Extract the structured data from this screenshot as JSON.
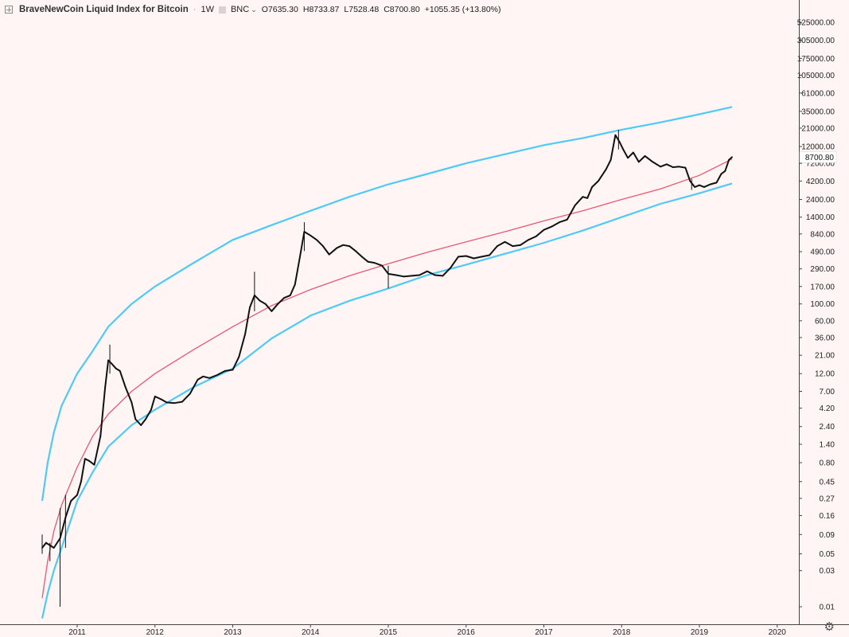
{
  "header": {
    "symbol": "BraveNewCoin Liquid Index for Bitcoin",
    "interval": "1W",
    "exchange": "BNC",
    "open": "O7635.30",
    "high": "H8733.87",
    "low": "L7528.48",
    "close": "C8700.80",
    "change": "+1055.35 (+13.80%)"
  },
  "colors": {
    "background": "#fff5f5",
    "price": "#111111",
    "band_outer": "#4fc9f5",
    "band_mid": "#e8586f",
    "last_price_label_bg": "#ffffff"
  },
  "icons": {
    "expand": "expand-icon",
    "visibility": "visibility-icon",
    "dropdown": "chevron-down-icon",
    "settings": "gear-icon"
  },
  "chart_data": {
    "type": "line",
    "title": "BraveNewCoin Liquid Index for Bitcoin",
    "yscale": "log",
    "ylim": [
      0.005,
      1000000
    ],
    "xlim": [
      2010.45,
      2020.45
    ],
    "y_ticks": [
      "525000.00",
      "305000.00",
      "175000.00",
      "105000.00",
      "61000.00",
      "35000.00",
      "21000.00",
      "12000.00",
      "7200.00",
      "4200.00",
      "2400.00",
      "1400.00",
      "840.00",
      "490.00",
      "290.00",
      "170.00",
      "100.00",
      "60.00",
      "36.00",
      "21.00",
      "12.00",
      "7.00",
      "4.20",
      "2.40",
      "1.40",
      "0.80",
      "0.45",
      "0.27",
      "0.16",
      "0.09",
      "0.05",
      "0.03",
      "0.01"
    ],
    "y_tick_values": [
      525000,
      305000,
      175000,
      105000,
      61000,
      35000,
      21000,
      12000,
      7200,
      4200,
      2400,
      1400,
      840,
      490,
      290,
      170,
      100,
      60,
      36,
      21,
      12,
      7,
      4.2,
      2.4,
      1.4,
      0.8,
      0.45,
      0.27,
      0.16,
      0.09,
      0.05,
      0.03,
      0.01
    ],
    "x_ticks": [
      "2011",
      "2012",
      "2013",
      "2014",
      "2015",
      "2016",
      "2017",
      "2018",
      "2019",
      "2020"
    ],
    "x_tick_values": [
      2011,
      2012,
      2013,
      2014,
      2015,
      2016,
      2017,
      2018,
      2019,
      2020
    ],
    "last_price_label": "8700.80",
    "last_price": 8700.8,
    "price_series": [
      [
        2010.55,
        0.06
      ],
      [
        2010.6,
        0.07
      ],
      [
        2010.7,
        0.06
      ],
      [
        2010.78,
        0.08
      ],
      [
        2010.85,
        0.15
      ],
      [
        2010.92,
        0.25
      ],
      [
        2011.0,
        0.3
      ],
      [
        2011.05,
        0.45
      ],
      [
        2011.1,
        0.9
      ],
      [
        2011.15,
        0.85
      ],
      [
        2011.22,
        0.75
      ],
      [
        2011.3,
        1.8
      ],
      [
        2011.36,
        8.0
      ],
      [
        2011.4,
        18.0
      ],
      [
        2011.45,
        16.0
      ],
      [
        2011.5,
        14.0
      ],
      [
        2011.55,
        13.0
      ],
      [
        2011.62,
        8.0
      ],
      [
        2011.7,
        5.0
      ],
      [
        2011.75,
        3.0
      ],
      [
        2011.82,
        2.5
      ],
      [
        2011.88,
        3.0
      ],
      [
        2011.95,
        4.0
      ],
      [
        2012.0,
        6.0
      ],
      [
        2012.08,
        5.5
      ],
      [
        2012.15,
        5.0
      ],
      [
        2012.25,
        4.9
      ],
      [
        2012.35,
        5.1
      ],
      [
        2012.45,
        6.5
      ],
      [
        2012.55,
        10.0
      ],
      [
        2012.62,
        11.0
      ],
      [
        2012.7,
        10.5
      ],
      [
        2012.8,
        11.5
      ],
      [
        2012.9,
        13.0
      ],
      [
        2013.0,
        13.5
      ],
      [
        2013.08,
        20.0
      ],
      [
        2013.16,
        40.0
      ],
      [
        2013.22,
        90.0
      ],
      [
        2013.28,
        130.0
      ],
      [
        2013.35,
        110.0
      ],
      [
        2013.42,
        100.0
      ],
      [
        2013.5,
        80.0
      ],
      [
        2013.58,
        100.0
      ],
      [
        2013.66,
        120.0
      ],
      [
        2013.74,
        130.0
      ],
      [
        2013.8,
        180.0
      ],
      [
        2013.86,
        400.0
      ],
      [
        2013.92,
        900.0
      ],
      [
        2014.0,
        800.0
      ],
      [
        2014.08,
        700.0
      ],
      [
        2014.16,
        580.0
      ],
      [
        2014.24,
        450.0
      ],
      [
        2014.34,
        550.0
      ],
      [
        2014.42,
        600.0
      ],
      [
        2014.5,
        580.0
      ],
      [
        2014.58,
        500.0
      ],
      [
        2014.66,
        420.0
      ],
      [
        2014.74,
        360.0
      ],
      [
        2014.82,
        350.0
      ],
      [
        2014.92,
        320.0
      ],
      [
        2015.0,
        250.0
      ],
      [
        2015.1,
        240.0
      ],
      [
        2015.2,
        230.0
      ],
      [
        2015.3,
        235.0
      ],
      [
        2015.4,
        240.0
      ],
      [
        2015.5,
        270.0
      ],
      [
        2015.6,
        240.0
      ],
      [
        2015.7,
        235.0
      ],
      [
        2015.8,
        300.0
      ],
      [
        2015.9,
        420.0
      ],
      [
        2016.0,
        430.0
      ],
      [
        2016.1,
        400.0
      ],
      [
        2016.2,
        420.0
      ],
      [
        2016.3,
        440.0
      ],
      [
        2016.4,
        580.0
      ],
      [
        2016.5,
        660.0
      ],
      [
        2016.6,
        580.0
      ],
      [
        2016.7,
        600.0
      ],
      [
        2016.8,
        700.0
      ],
      [
        2016.9,
        780.0
      ],
      [
        2017.0,
        950.0
      ],
      [
        2017.1,
        1050.0
      ],
      [
        2017.2,
        1200.0
      ],
      [
        2017.3,
        1300.0
      ],
      [
        2017.4,
        2000.0
      ],
      [
        2017.5,
        2600.0
      ],
      [
        2017.56,
        2500.0
      ],
      [
        2017.62,
        3500.0
      ],
      [
        2017.7,
        4200.0
      ],
      [
        2017.8,
        6000.0
      ],
      [
        2017.86,
        8000.0
      ],
      [
        2017.92,
        17000.0
      ],
      [
        2017.97,
        14000.0
      ],
      [
        2018.02,
        11000.0
      ],
      [
        2018.08,
        8500.0
      ],
      [
        2018.15,
        10000.0
      ],
      [
        2018.22,
        7500.0
      ],
      [
        2018.3,
        9000.0
      ],
      [
        2018.4,
        7500.0
      ],
      [
        2018.5,
        6500.0
      ],
      [
        2018.58,
        7000.0
      ],
      [
        2018.66,
        6400.0
      ],
      [
        2018.74,
        6500.0
      ],
      [
        2018.82,
        6300.0
      ],
      [
        2018.88,
        4200.0
      ],
      [
        2018.94,
        3500.0
      ],
      [
        2019.0,
        3700.0
      ],
      [
        2019.06,
        3500.0
      ],
      [
        2019.14,
        3800.0
      ],
      [
        2019.22,
        4000.0
      ],
      [
        2019.28,
        5200.0
      ],
      [
        2019.33,
        5700.0
      ],
      [
        2019.38,
        8000.0
      ],
      [
        2019.42,
        8700.8
      ]
    ],
    "spikes": [
      [
        2010.55,
        0.05,
        0.09
      ],
      [
        2010.65,
        0.04,
        0.07
      ],
      [
        2010.78,
        0.01,
        0.2
      ],
      [
        2010.85,
        0.06,
        0.3
      ],
      [
        2011.42,
        12.0,
        29.0
      ],
      [
        2013.28,
        80.0,
        266.0
      ],
      [
        2013.92,
        500.0,
        1200.0
      ],
      [
        2015.0,
        160.0,
        320.0
      ],
      [
        2017.96,
        11000.0,
        20000.0
      ],
      [
        2018.9,
        3200.0,
        4500.0
      ]
    ],
    "bands": [
      {
        "name": "",
        "role": "upper",
        "color": "#4fc9f5",
        "points": [
          [
            2010.55,
            0.25
          ],
          [
            2010.62,
            0.8
          ],
          [
            2010.7,
            2.0
          ],
          [
            2010.8,
            4.5
          ],
          [
            2011.0,
            12.0
          ],
          [
            2011.2,
            24.0
          ],
          [
            2011.4,
            50.0
          ],
          [
            2011.7,
            100.0
          ],
          [
            2012.0,
            170.0
          ],
          [
            2012.5,
            350.0
          ],
          [
            2013.0,
            700.0
          ],
          [
            2013.5,
            1100.0
          ],
          [
            2014.0,
            1700.0
          ],
          [
            2014.5,
            2600.0
          ],
          [
            2015.0,
            3800.0
          ],
          [
            2015.5,
            5200.0
          ],
          [
            2016.0,
            7200.0
          ],
          [
            2016.5,
            9500.0
          ],
          [
            2017.0,
            12500.0
          ],
          [
            2017.5,
            15500.0
          ],
          [
            2018.0,
            20000.0
          ],
          [
            2018.5,
            25000.0
          ],
          [
            2019.0,
            32000.0
          ],
          [
            2019.42,
            40000.0
          ]
        ]
      },
      {
        "name": "",
        "role": "middle",
        "color": "#e8586f",
        "points": [
          [
            2010.55,
            0.013
          ],
          [
            2010.62,
            0.04
          ],
          [
            2010.7,
            0.1
          ],
          [
            2010.8,
            0.22
          ],
          [
            2011.0,
            0.7
          ],
          [
            2011.2,
            1.8
          ],
          [
            2011.4,
            3.5
          ],
          [
            2011.7,
            7.0
          ],
          [
            2012.0,
            12.0
          ],
          [
            2012.5,
            25.0
          ],
          [
            2013.0,
            50.0
          ],
          [
            2013.5,
            95.0
          ],
          [
            2014.0,
            155.0
          ],
          [
            2014.5,
            235.0
          ],
          [
            2015.0,
            340.0
          ],
          [
            2015.5,
            480.0
          ],
          [
            2016.0,
            660.0
          ],
          [
            2016.5,
            900.0
          ],
          [
            2017.0,
            1250.0
          ],
          [
            2017.5,
            1700.0
          ],
          [
            2018.0,
            2400.0
          ],
          [
            2018.5,
            3300.0
          ],
          [
            2019.0,
            5000.0
          ],
          [
            2019.42,
            8200.0
          ]
        ]
      },
      {
        "name": "",
        "role": "lower",
        "color": "#4fc9f5",
        "points": [
          [
            2010.55,
            0.007
          ],
          [
            2010.62,
            0.015
          ],
          [
            2010.7,
            0.03
          ],
          [
            2010.8,
            0.06
          ],
          [
            2011.0,
            0.25
          ],
          [
            2011.2,
            0.6
          ],
          [
            2011.4,
            1.3
          ],
          [
            2011.7,
            2.5
          ],
          [
            2012.0,
            4.0
          ],
          [
            2012.5,
            8.0
          ],
          [
            2013.0,
            14.0
          ],
          [
            2013.5,
            35.0
          ],
          [
            2014.0,
            70.0
          ],
          [
            2014.5,
            110.0
          ],
          [
            2015.0,
            160.0
          ],
          [
            2015.5,
            240.0
          ],
          [
            2016.0,
            330.0
          ],
          [
            2016.5,
            460.0
          ],
          [
            2017.0,
            640.0
          ],
          [
            2017.5,
            930.0
          ],
          [
            2018.0,
            1400.0
          ],
          [
            2018.5,
            2100.0
          ],
          [
            2019.0,
            2900.0
          ],
          [
            2019.42,
            3900.0
          ]
        ]
      }
    ],
    "grid": false,
    "legend": "none"
  }
}
